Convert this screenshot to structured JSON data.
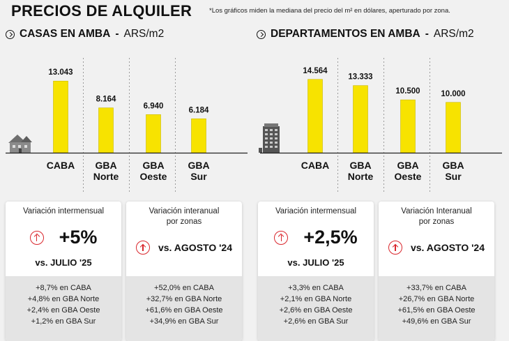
{
  "header": {
    "title": "PRECIOS DE ALQUILER",
    "note": "*Los gráficos miden la mediana del precio del m² en dólares, aperturado por zona."
  },
  "colors": {
    "bar": "#f7e300",
    "bar_edge": "#c9b800",
    "up_arrow": "#d9262c"
  },
  "chart_data": [
    {
      "type": "bar",
      "title": "CASAS EN AMBA",
      "unit": "ARS/m2",
      "categories": [
        "CABA",
        "GBA Norte",
        "GBA Oeste",
        "GBA Sur"
      ],
      "category_lines": [
        [
          "CABA"
        ],
        [
          "GBA",
          "Norte"
        ],
        [
          "GBA",
          "Oeste"
        ],
        [
          "GBA",
          "Sur"
        ]
      ],
      "values": [
        13043,
        8164,
        6940,
        6184
      ],
      "value_labels": [
        "13.043",
        "8.164",
        "6.940",
        "6.184"
      ],
      "icon": "house-icon",
      "ylim": [
        0,
        16500
      ]
    },
    {
      "type": "bar",
      "title": "DEPARTAMENTOS EN AMBA",
      "unit": "ARS/m2",
      "categories": [
        "CABA",
        "GBA Norte",
        "GBA Oeste",
        "GBA Sur"
      ],
      "category_lines": [
        [
          "CABA"
        ],
        [
          "GBA",
          "Norte"
        ],
        [
          "GBA",
          "Oeste"
        ],
        [
          "GBA",
          "Sur"
        ]
      ],
      "values": [
        14564,
        13333,
        10500,
        10000
      ],
      "value_labels": [
        "14.564",
        "13.333",
        "10.500",
        "10.000"
      ],
      "icon": "building-icon",
      "ylim": [
        0,
        18000
      ]
    }
  ],
  "cards": {
    "casas_mensual": {
      "label": "Variación intermensual",
      "value": "+5%",
      "ref": "vs. JULIO '25",
      "items": [
        "+8,7% en CABA",
        "+4,8% en GBA Norte",
        "+2,4% en GBA Oeste",
        "+1,2% en GBA Sur"
      ]
    },
    "casas_anual": {
      "label_line1": "Variación interanual",
      "label_line2": "por zonas",
      "ref": "vs. AGOSTO '24",
      "items": [
        "+52,0% en CABA",
        "+32,7% en GBA Norte",
        "+61,6% en GBA Oeste",
        "+34,9% en GBA Sur"
      ]
    },
    "deptos_mensual": {
      "label": "Variación intermensual",
      "value": "+2,5%",
      "ref": "vs. JULIO '25",
      "items": [
        "+3,3% en CABA",
        "+2,1% en GBA Norte",
        "+2,6% en GBA Oeste",
        "+2,6% en GBA Sur"
      ]
    },
    "deptos_anual": {
      "label_line1": "Variación Interanual",
      "label_line2": "por zonas",
      "ref": "vs. AGOSTO '24",
      "items": [
        "+33,7% en CABA",
        "+26,7% en GBA Norte",
        "+61,5% en GBA Oeste",
        "+49,6% en GBA Sur"
      ]
    }
  }
}
